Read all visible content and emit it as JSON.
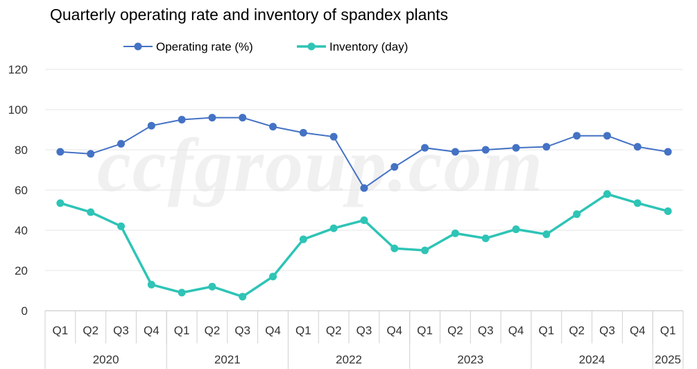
{
  "watermark": "ccfgroup.com",
  "chart_data": {
    "type": "line",
    "title": "Quarterly operating rate and inventory of spandex plants",
    "legend_position": "top",
    "grid": true,
    "ylim": [
      0,
      120
    ],
    "yticks": [
      0,
      20,
      40,
      60,
      80,
      100,
      120
    ],
    "categories": [
      "Q1",
      "Q2",
      "Q3",
      "Q4",
      "Q1",
      "Q2",
      "Q3",
      "Q4",
      "Q1",
      "Q2",
      "Q3",
      "Q4",
      "Q1",
      "Q2",
      "Q3",
      "Q4",
      "Q1",
      "Q2",
      "Q3",
      "Q4",
      "Q1"
    ],
    "years": [
      {
        "label": "2020",
        "span": 4
      },
      {
        "label": "2021",
        "span": 4
      },
      {
        "label": "2022",
        "span": 4
      },
      {
        "label": "2023",
        "span": 4
      },
      {
        "label": "2024",
        "span": 4
      },
      {
        "label": "2025",
        "span": 1
      }
    ],
    "series": [
      {
        "name": "Operating rate (%)",
        "color": "#4472C4",
        "values": [
          79,
          78,
          83,
          92,
          95,
          96,
          96,
          91.5,
          88.5,
          86.5,
          61,
          71.5,
          81,
          79,
          80,
          81,
          81.5,
          87,
          87,
          81.5,
          79
        ]
      },
      {
        "name": "Inventory (day)",
        "color": "#2EC4B6",
        "values": [
          53.5,
          49,
          42,
          13,
          9,
          12,
          7,
          17,
          35.5,
          41,
          45,
          31,
          30,
          38.5,
          36,
          40.5,
          38,
          48,
          58,
          53.5,
          49.5
        ]
      }
    ]
  }
}
